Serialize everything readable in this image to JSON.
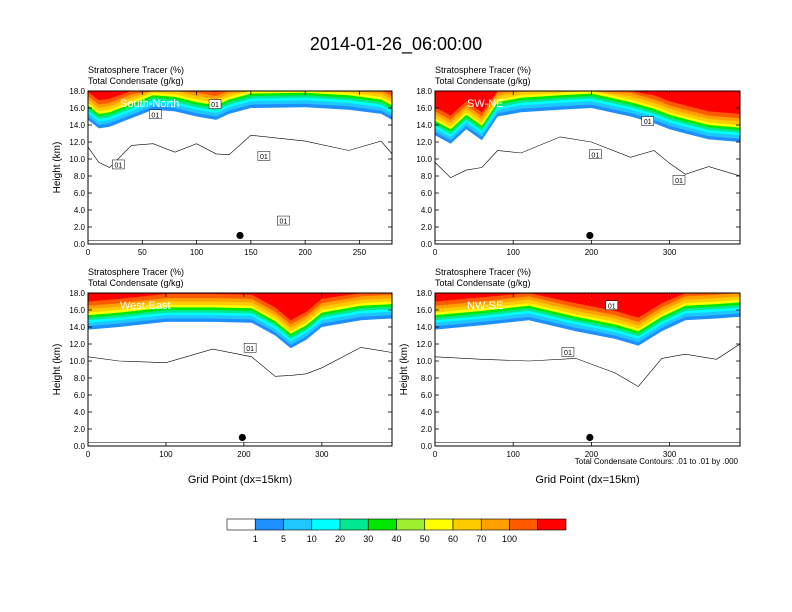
{
  "figure": {
    "title": "2014-01-26_06:00:00",
    "contour_note": "Total Condensate Contours: .01 to .01 by .000",
    "colorbar": {
      "labels": [
        "1",
        "5",
        "10",
        "20",
        "30",
        "40",
        "50",
        "60",
        "70",
        "100"
      ],
      "colors": [
        "#ffffff",
        "#1e8fff",
        "#1ec8ff",
        "#00ffff",
        "#00e890",
        "#00e800",
        "#a0ee30",
        "#ffff00",
        "#ffcc00",
        "#ffa000",
        "#ff5a00",
        "#ff0000"
      ]
    }
  },
  "chart_data": [
    {
      "type": "heatmap",
      "label": "South-North",
      "title_line1": "Stratosphere Tracer   (%)",
      "title_line2": "Total Condensate   (g/kg)",
      "ylabel": "Height (km)",
      "xlabel": "",
      "xlim": [
        0,
        280
      ],
      "ylim": [
        0,
        18
      ],
      "xticks": [
        "0",
        "50",
        "100",
        "150",
        "200",
        "250"
      ],
      "xtick_values": [
        0,
        50,
        100,
        150,
        200,
        250
      ],
      "yticks": [
        "0.0",
        "2.0",
        "4.0",
        "6.0",
        "8.0",
        "10.0",
        "12.0",
        "14.0",
        "16.0",
        "18.0"
      ],
      "tracer_top": [
        [
          0,
          14.6
        ],
        [
          10,
          13.6
        ],
        [
          20,
          13.8
        ],
        [
          40,
          14.8
        ],
        [
          60,
          15.8
        ],
        [
          80,
          15.6
        ],
        [
          100,
          15.0
        ],
        [
          118,
          14.6
        ],
        [
          130,
          15.3
        ],
        [
          150,
          16.0
        ],
        [
          200,
          16.1
        ],
        [
          240,
          15.8
        ],
        [
          270,
          15.3
        ],
        [
          280,
          14.6
        ]
      ],
      "contour_labels": [
        {
          "x": 62,
          "y": 15.2,
          "text": "01"
        },
        {
          "x": 117,
          "y": 16.4,
          "text": "01"
        },
        {
          "x": 162,
          "y": 10.3,
          "text": "01"
        },
        {
          "x": 180,
          "y": 2.7,
          "text": "01"
        },
        {
          "x": 28,
          "y": 9.3,
          "text": "01"
        }
      ],
      "marker": {
        "x": 140,
        "y": 1.0
      }
    },
    {
      "type": "heatmap",
      "label": "SW-NE",
      "title_line1": "Stratosphere Tracer   (%)",
      "title_line2": "Total Condensate   (g/kg)",
      "ylabel": "",
      "xlabel": "",
      "xlim": [
        0,
        390
      ],
      "ylim": [
        0,
        18
      ],
      "xticks": [
        "0",
        "100",
        "200",
        "300"
      ],
      "xtick_values": [
        0,
        100,
        200,
        300
      ],
      "yticks": [
        "0.0",
        "2.0",
        "4.0",
        "6.0",
        "8.0",
        "10.0",
        "12.0",
        "14.0",
        "16.0",
        "18.0"
      ],
      "tracer_top": [
        [
          0,
          12.8
        ],
        [
          20,
          11.8
        ],
        [
          40,
          13.5
        ],
        [
          60,
          12.2
        ],
        [
          80,
          15.0
        ],
        [
          110,
          15.5
        ],
        [
          160,
          15.8
        ],
        [
          200,
          16.0
        ],
        [
          250,
          15.0
        ],
        [
          280,
          14.2
        ],
        [
          300,
          13.5
        ],
        [
          320,
          13.0
        ],
        [
          350,
          12.3
        ],
        [
          390,
          12.0
        ]
      ],
      "contour_labels": [
        {
          "x": 205,
          "y": 10.5,
          "text": "01"
        },
        {
          "x": 272,
          "y": 14.4,
          "text": "01"
        },
        {
          "x": 312,
          "y": 7.5,
          "text": "01"
        }
      ],
      "marker": {
        "x": 198,
        "y": 1.0
      }
    },
    {
      "type": "heatmap",
      "label": "West-East",
      "title_line1": "Stratosphere Tracer   (%)",
      "title_line2": "Total Condensate   (g/kg)",
      "ylabel": "Height (km)",
      "xlabel": "Grid Point (dx=15km)",
      "xlim": [
        0,
        390
      ],
      "ylim": [
        0,
        18
      ],
      "xticks": [
        "0",
        "100",
        "200",
        "300"
      ],
      "xtick_values": [
        0,
        100,
        200,
        300
      ],
      "yticks": [
        "0.0",
        "2.0",
        "4.0",
        "6.0",
        "8.0",
        "10.0",
        "12.0",
        "14.0",
        "16.0",
        "18.0"
      ],
      "tracer_top": [
        [
          0,
          13.7
        ],
        [
          40,
          14.0
        ],
        [
          100,
          14.6
        ],
        [
          160,
          14.6
        ],
        [
          210,
          14.5
        ],
        [
          240,
          13.0
        ],
        [
          260,
          11.5
        ],
        [
          280,
          12.5
        ],
        [
          300,
          14.0
        ],
        [
          350,
          14.8
        ],
        [
          390,
          15.0
        ]
      ],
      "contour_labels": [
        {
          "x": 208,
          "y": 11.5,
          "text": "01"
        }
      ],
      "marker": {
        "x": 198,
        "y": 1.0
      }
    },
    {
      "type": "heatmap",
      "label": "NW-SE",
      "title_line1": "Stratosphere Tracer   (%)",
      "title_line2": "Total Condensate   (g/kg)",
      "ylabel": "Height (km)",
      "xlabel": "Grid Point (dx=15km)",
      "xlim": [
        0,
        390
      ],
      "ylim": [
        0,
        18
      ],
      "xticks": [
        "0",
        "100",
        "200",
        "300"
      ],
      "xtick_values": [
        0,
        100,
        200,
        300
      ],
      "yticks": [
        "0.0",
        "2.0",
        "4.0",
        "6.0",
        "8.0",
        "10.0",
        "12.0",
        "14.0",
        "16.0",
        "18.0"
      ],
      "tracer_top": [
        [
          0,
          13.7
        ],
        [
          60,
          14.2
        ],
        [
          120,
          14.8
        ],
        [
          180,
          13.5
        ],
        [
          230,
          12.6
        ],
        [
          260,
          11.8
        ],
        [
          290,
          13.5
        ],
        [
          320,
          14.8
        ],
        [
          360,
          15.0
        ],
        [
          390,
          15.2
        ]
      ],
      "contour_labels": [
        {
          "x": 170,
          "y": 11.0,
          "text": "01"
        },
        {
          "x": 226,
          "y": 16.5,
          "text": "01"
        }
      ],
      "marker": {
        "x": 198,
        "y": 1.0
      }
    }
  ]
}
